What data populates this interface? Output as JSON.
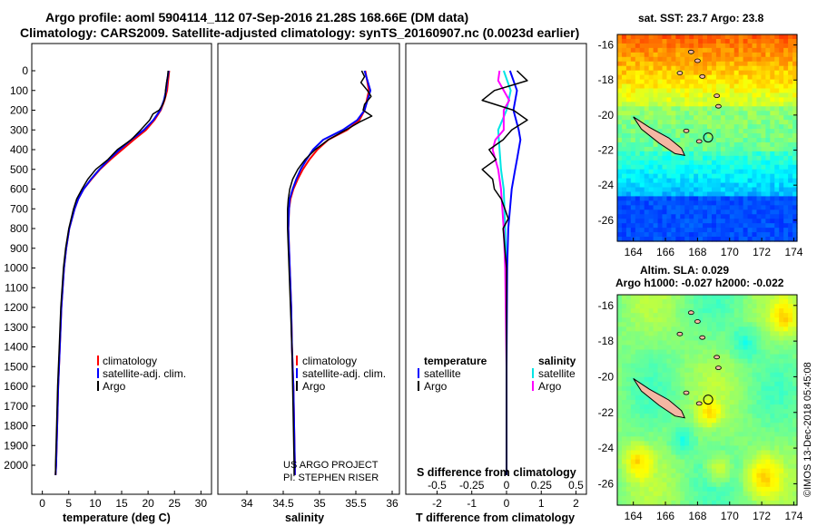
{
  "title": {
    "line1": "Argo profile: aoml 5904114_112 07-Sep-2016 21.28S 168.66E (DM data)",
    "line2": "Climatology: CARS2009. Satellite-adjusted climatology: synTS_20160907.nc (0.0023d earlier)"
  },
  "colors": {
    "climatology": "#ff0000",
    "satellite": "#0000ff",
    "argo": "#000000",
    "salinity_diff": "#00e5e5",
    "salinity_sat": "#ff00ff"
  },
  "chart_data": [
    {
      "type": "line",
      "panel": "temperature",
      "xlabel": "temperature (deg C)",
      "xlim": [
        -2,
        32
      ],
      "xticks": [
        "0",
        "5",
        "10",
        "15",
        "20",
        "25",
        "30"
      ],
      "ylim": [
        0,
        2100
      ],
      "yreversed": true,
      "yticks": [
        "0",
        "100",
        "200",
        "300",
        "400",
        "500",
        "600",
        "700",
        "800",
        "900",
        "1000",
        "1100",
        "1200",
        "1300",
        "1400",
        "1500",
        "1600",
        "1700",
        "1800",
        "1900",
        "2000"
      ],
      "legend": {
        "items": [
          "climatology",
          "satellite-adj. clim.",
          "Argo"
        ],
        "placement": "lower-center"
      },
      "series": [
        {
          "name": "climatology",
          "depth": [
            0,
            50,
            100,
            150,
            200,
            250,
            300,
            350,
            400,
            450,
            500,
            550,
            600,
            650,
            700,
            800,
            900,
            1000,
            1200,
            1400,
            1600,
            1800,
            2000,
            2050
          ],
          "values": [
            24.0,
            23.8,
            23.6,
            23.1,
            22.4,
            21.2,
            19.6,
            17.3,
            15.1,
            12.9,
            10.9,
            9.3,
            7.8,
            6.8,
            6.1,
            5.1,
            4.5,
            4.1,
            3.6,
            3.3,
            3.0,
            2.8,
            2.6,
            2.5
          ]
        },
        {
          "name": "satellite-adj. clim.",
          "depth": [
            0,
            50,
            100,
            150,
            200,
            250,
            300,
            350,
            400,
            450,
            500,
            550,
            600,
            650,
            700,
            800,
            900,
            1000,
            1200,
            1400,
            1600,
            1800,
            2000,
            2050
          ],
          "values": [
            23.9,
            23.6,
            23.4,
            23.0,
            22.3,
            21.0,
            19.2,
            16.8,
            14.6,
            12.6,
            10.8,
            9.2,
            7.8,
            6.8,
            6.1,
            5.1,
            4.5,
            4.1,
            3.6,
            3.3,
            3.0,
            2.8,
            2.6,
            2.5
          ]
        },
        {
          "name": "Argo",
          "depth": [
            0,
            30,
            60,
            100,
            130,
            170,
            200,
            220,
            250,
            280,
            300,
            350,
            400,
            450,
            500,
            550,
            600,
            650,
            700,
            800,
            900,
            1000,
            1200,
            1400,
            1600,
            1800,
            2000,
            2050
          ],
          "values": [
            23.8,
            23.7,
            23.5,
            23.3,
            23.3,
            22.8,
            22.1,
            20.9,
            20.3,
            19.3,
            18.6,
            16.8,
            14.2,
            12.4,
            10.1,
            8.6,
            7.5,
            6.5,
            5.9,
            5.0,
            4.4,
            4.0,
            3.5,
            3.2,
            2.9,
            2.7,
            2.5,
            2.5
          ]
        }
      ]
    },
    {
      "type": "line",
      "panel": "salinity",
      "xlabel": "salinity",
      "xlim": [
        33.6,
        36.1
      ],
      "xticks": [
        "34",
        "34.5",
        "35",
        "35.5",
        "36"
      ],
      "ylim": [
        0,
        2100
      ],
      "yreversed": true,
      "legend": {
        "items": [
          "climatology",
          "satellite-adj. clim.",
          "Argo"
        ],
        "placement": "lower-center"
      },
      "series": [
        {
          "name": "climatology",
          "depth": [
            0,
            100,
            200,
            250,
            300,
            350,
            400,
            450,
            500,
            550,
            600,
            650,
            700,
            800,
            900,
            1000,
            1200,
            1400,
            1600,
            1800,
            2000,
            2050
          ],
          "values": [
            35.63,
            35.68,
            35.62,
            35.55,
            35.38,
            35.12,
            34.97,
            34.86,
            34.77,
            34.7,
            34.64,
            34.6,
            34.58,
            34.57,
            34.58,
            34.59,
            34.61,
            34.62,
            34.64,
            34.65,
            34.66,
            34.66
          ]
        },
        {
          "name": "satellite-adj. clim.",
          "depth": [
            0,
            100,
            200,
            250,
            300,
            350,
            400,
            450,
            500,
            550,
            600,
            650,
            700,
            800,
            900,
            1000,
            1200,
            1400,
            1600,
            1800,
            2000,
            2050
          ],
          "values": [
            35.62,
            35.7,
            35.62,
            35.52,
            35.32,
            35.05,
            34.91,
            34.82,
            34.74,
            34.68,
            34.63,
            34.59,
            34.58,
            34.57,
            34.58,
            34.59,
            34.61,
            34.62,
            34.64,
            34.65,
            34.66,
            34.66
          ]
        },
        {
          "name": "Argo",
          "depth": [
            0,
            30,
            60,
            100,
            130,
            170,
            200,
            230,
            260,
            300,
            350,
            400,
            450,
            500,
            550,
            600,
            650,
            700,
            800,
            900,
            1000,
            1200,
            1400,
            1600,
            1800,
            2000,
            2050
          ],
          "values": [
            35.58,
            35.62,
            35.57,
            35.66,
            35.71,
            35.62,
            35.6,
            35.72,
            35.55,
            35.36,
            35.12,
            34.94,
            34.8,
            34.7,
            34.63,
            34.59,
            34.57,
            34.56,
            34.56,
            34.57,
            34.58,
            34.6,
            34.62,
            34.63,
            34.64,
            34.65,
            34.65
          ]
        }
      ]
    },
    {
      "type": "line",
      "panel": "differences",
      "xlabel": "T difference from climatology",
      "xlabel_top": "S difference from climatology",
      "xlim": [
        -2.9,
        2.3
      ],
      "xticks": [
        "-2",
        "-1",
        "0",
        "1",
        "2"
      ],
      "s_ticks": [
        "-0.5",
        "-0.25",
        "0",
        "0.25",
        "0.5"
      ],
      "ylim": [
        0,
        2100
      ],
      "yreversed": true,
      "legend": {
        "titles": [
          "temperature",
          "salinity"
        ],
        "temperature_items": [
          "satellite",
          "Argo"
        ],
        "salinity_items": [
          "satellite",
          "Argo"
        ],
        "placement": "lower-center"
      },
      "series": [
        {
          "name": "temperature satellite",
          "depth": [
            0,
            100,
            200,
            300,
            350,
            400,
            450,
            500,
            600,
            700,
            800,
            1000,
            1500,
            2050
          ],
          "values": [
            0.1,
            0.3,
            0.2,
            0.35,
            0.4,
            0.35,
            0.3,
            0.25,
            0.15,
            0.1,
            0.05,
            0.02,
            0.0,
            0.0
          ]
        },
        {
          "name": "temperature Argo",
          "depth": [
            0,
            50,
            100,
            150,
            200,
            250,
            300,
            350,
            400,
            450,
            500,
            550,
            600,
            650,
            700,
            750,
            800,
            900,
            1000,
            1200,
            1600,
            2050
          ],
          "values": [
            0.3,
            0.6,
            -0.35,
            -0.7,
            0.2,
            0.6,
            0.15,
            -0.1,
            -0.5,
            -0.3,
            -0.7,
            -0.4,
            -0.35,
            -0.15,
            -0.05,
            0.05,
            -0.1,
            -0.05,
            0.0,
            0.0,
            0.0,
            0.0
          ]
        },
        {
          "name": "salinity satellite",
          "depth": [
            0,
            100,
            200,
            300,
            400,
            500,
            600,
            800,
            1000,
            1500,
            2050
          ],
          "values": [
            -0.02,
            0.03,
            0.0,
            -0.06,
            -0.05,
            -0.04,
            -0.02,
            -0.01,
            0.0,
            0.0,
            0.0
          ]
        },
        {
          "name": "salinity Argo",
          "depth": [
            0,
            50,
            100,
            150,
            200,
            300,
            350,
            400,
            450,
            500,
            600,
            700,
            800,
            1000,
            1500,
            2050
          ],
          "values": [
            -0.05,
            -0.06,
            -0.02,
            0.02,
            -0.02,
            -0.02,
            -0.08,
            -0.1,
            -0.08,
            -0.06,
            -0.04,
            -0.03,
            -0.02,
            -0.01,
            0.0,
            0.0
          ]
        }
      ]
    }
  ],
  "credits": {
    "line1": "US ARGO PROJECT",
    "line2": "PI: STEPHEN RISER"
  },
  "maps": {
    "sst_title": "sat. SST: 23.7 Argo: 23.8",
    "sla_title1": "Altim. SLA: 0.029",
    "sla_title2": "Argo h1000: -0.027 h2000: -0.022",
    "lon_ticks": [
      "164",
      "166",
      "168",
      "170",
      "172",
      "174"
    ],
    "lat_ticks": [
      "-16",
      "-18",
      "-20",
      "-22",
      "-24",
      "-26"
    ],
    "profile_lon": 168.66,
    "profile_lat": -21.28
  },
  "timestamp": "©IMOS 13-Dec-2018 05:45:08"
}
